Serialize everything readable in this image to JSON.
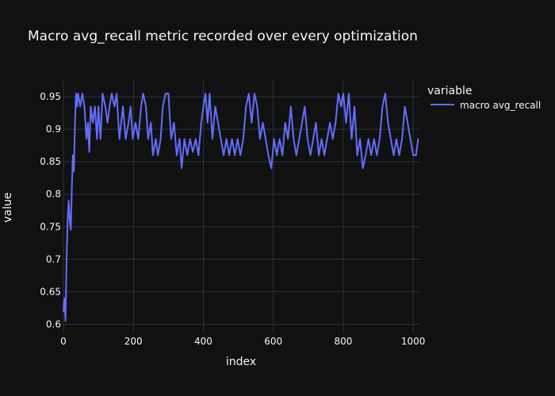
{
  "chart_data": {
    "type": "line",
    "title": "Macro avg_recall metric recorded over every optimization",
    "xlabel": "index",
    "ylabel": "value",
    "xlim": [
      0,
      1020
    ],
    "ylim": [
      0.587,
      0.977
    ],
    "x_ticks": [
      0,
      200,
      400,
      600,
      800,
      1000
    ],
    "x_tick_labels": [
      "0",
      "200",
      "400",
      "600",
      "800",
      "1000"
    ],
    "y_ticks": [
      0.6,
      0.65,
      0.7,
      0.75,
      0.8,
      0.85,
      0.9,
      0.95
    ],
    "y_tick_labels": [
      "0.6",
      "0.65",
      "0.7",
      "0.75",
      "0.8",
      "0.85",
      "0.9",
      "0.95"
    ],
    "grid": true,
    "legend": {
      "title": "variable",
      "position": "top-right"
    },
    "series": [
      {
        "name": "macro avg_recall",
        "color": "#636efa",
        "points": [
          [
            0,
            0.62
          ],
          [
            3,
            0.64
          ],
          [
            6,
            0.605
          ],
          [
            9,
            0.7
          ],
          [
            12,
            0.76
          ],
          [
            15,
            0.79
          ],
          [
            18,
            0.76
          ],
          [
            21,
            0.745
          ],
          [
            24,
            0.81
          ],
          [
            27,
            0.86
          ],
          [
            30,
            0.835
          ],
          [
            33,
            0.91
          ],
          [
            36,
            0.955
          ],
          [
            39,
            0.935
          ],
          [
            42,
            0.955
          ],
          [
            48,
            0.935
          ],
          [
            54,
            0.955
          ],
          [
            60,
            0.935
          ],
          [
            66,
            0.885
          ],
          [
            70,
            0.91
          ],
          [
            74,
            0.865
          ],
          [
            78,
            0.935
          ],
          [
            84,
            0.91
          ],
          [
            90,
            0.935
          ],
          [
            96,
            0.885
          ],
          [
            100,
            0.935
          ],
          [
            106,
            0.885
          ],
          [
            112,
            0.955
          ],
          [
            120,
            0.935
          ],
          [
            126,
            0.91
          ],
          [
            132,
            0.935
          ],
          [
            138,
            0.955
          ],
          [
            146,
            0.935
          ],
          [
            152,
            0.955
          ],
          [
            160,
            0.885
          ],
          [
            170,
            0.935
          ],
          [
            178,
            0.885
          ],
          [
            186,
            0.91
          ],
          [
            192,
            0.935
          ],
          [
            198,
            0.885
          ],
          [
            206,
            0.91
          ],
          [
            214,
            0.885
          ],
          [
            222,
            0.935
          ],
          [
            228,
            0.955
          ],
          [
            236,
            0.935
          ],
          [
            242,
            0.885
          ],
          [
            250,
            0.91
          ],
          [
            256,
            0.86
          ],
          [
            264,
            0.885
          ],
          [
            270,
            0.86
          ],
          [
            278,
            0.885
          ],
          [
            284,
            0.935
          ],
          [
            292,
            0.955
          ],
          [
            300,
            0.955
          ],
          [
            308,
            0.885
          ],
          [
            316,
            0.91
          ],
          [
            324,
            0.86
          ],
          [
            332,
            0.885
          ],
          [
            338,
            0.84
          ],
          [
            346,
            0.885
          ],
          [
            354,
            0.86
          ],
          [
            362,
            0.885
          ],
          [
            370,
            0.865
          ],
          [
            378,
            0.885
          ],
          [
            386,
            0.86
          ],
          [
            394,
            0.91
          ],
          [
            400,
            0.935
          ],
          [
            406,
            0.955
          ],
          [
            412,
            0.91
          ],
          [
            418,
            0.955
          ],
          [
            426,
            0.885
          ],
          [
            434,
            0.935
          ],
          [
            442,
            0.91
          ],
          [
            450,
            0.885
          ],
          [
            458,
            0.86
          ],
          [
            466,
            0.885
          ],
          [
            474,
            0.86
          ],
          [
            482,
            0.885
          ],
          [
            490,
            0.86
          ],
          [
            498,
            0.885
          ],
          [
            506,
            0.86
          ],
          [
            514,
            0.885
          ],
          [
            522,
            0.935
          ],
          [
            530,
            0.955
          ],
          [
            538,
            0.91
          ],
          [
            546,
            0.955
          ],
          [
            554,
            0.935
          ],
          [
            562,
            0.885
          ],
          [
            570,
            0.91
          ],
          [
            578,
            0.885
          ],
          [
            586,
            0.86
          ],
          [
            594,
            0.84
          ],
          [
            602,
            0.885
          ],
          [
            610,
            0.86
          ],
          [
            618,
            0.885
          ],
          [
            626,
            0.86
          ],
          [
            634,
            0.91
          ],
          [
            642,
            0.885
          ],
          [
            650,
            0.935
          ],
          [
            658,
            0.885
          ],
          [
            666,
            0.86
          ],
          [
            674,
            0.885
          ],
          [
            682,
            0.91
          ],
          [
            690,
            0.935
          ],
          [
            698,
            0.885
          ],
          [
            706,
            0.86
          ],
          [
            714,
            0.885
          ],
          [
            722,
            0.91
          ],
          [
            730,
            0.86
          ],
          [
            738,
            0.885
          ],
          [
            746,
            0.86
          ],
          [
            754,
            0.885
          ],
          [
            762,
            0.91
          ],
          [
            770,
            0.885
          ],
          [
            778,
            0.91
          ],
          [
            786,
            0.955
          ],
          [
            794,
            0.935
          ],
          [
            800,
            0.955
          ],
          [
            808,
            0.91
          ],
          [
            816,
            0.955
          ],
          [
            824,
            0.885
          ],
          [
            832,
            0.935
          ],
          [
            840,
            0.86
          ],
          [
            848,
            0.885
          ],
          [
            856,
            0.84
          ],
          [
            864,
            0.86
          ],
          [
            872,
            0.885
          ],
          [
            880,
            0.86
          ],
          [
            888,
            0.885
          ],
          [
            896,
            0.86
          ],
          [
            904,
            0.885
          ],
          [
            912,
            0.935
          ],
          [
            920,
            0.955
          ],
          [
            928,
            0.91
          ],
          [
            936,
            0.885
          ],
          [
            944,
            0.86
          ],
          [
            952,
            0.885
          ],
          [
            960,
            0.86
          ],
          [
            968,
            0.885
          ],
          [
            976,
            0.935
          ],
          [
            984,
            0.91
          ],
          [
            992,
            0.885
          ],
          [
            1000,
            0.86
          ],
          [
            1008,
            0.86
          ],
          [
            1014,
            0.885
          ]
        ]
      }
    ]
  }
}
